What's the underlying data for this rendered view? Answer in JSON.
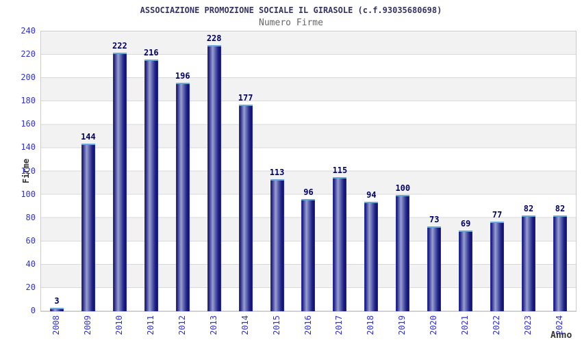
{
  "header": {
    "title": "ASSOCIAZIONE PROMOZIONE SOCIALE IL GIRASOLE (c.f.93035680698)",
    "subtitle": "Numero Firme"
  },
  "chart_data": {
    "type": "bar",
    "title": "ASSOCIAZIONE PROMOZIONE SOCIALE IL GIRASOLE (c.f.93035680698)",
    "subtitle": "Numero Firme",
    "xlabel": "Anno",
    "ylabel": "Firme",
    "categories": [
      "2008",
      "2009",
      "2010",
      "2011",
      "2012",
      "2013",
      "2014",
      "2015",
      "2016",
      "2017",
      "2018",
      "2019",
      "2020",
      "2021",
      "2022",
      "2023",
      "2024"
    ],
    "values": [
      3,
      144,
      222,
      216,
      196,
      228,
      177,
      113,
      96,
      115,
      94,
      100,
      73,
      69,
      77,
      82,
      82
    ],
    "ylim": [
      0,
      240
    ],
    "yticks": [
      0,
      20,
      40,
      60,
      80,
      100,
      120,
      140,
      160,
      180,
      200,
      220,
      240
    ],
    "grid": "horizontal-bands",
    "legend": "none",
    "colors": {
      "bar_edge": "#2b37c3",
      "bar_dark": "#12125f",
      "bar_light": "#9aa0d2",
      "bar_cap": "#66aadd",
      "value_label": "#000066",
      "tick_label": "#3333cc",
      "title": "#333366",
      "subtitle": "#666666",
      "band_gray": "#f2f2f2",
      "gridline": "#d9d9d9",
      "plot_border": "#cccccc"
    }
  }
}
